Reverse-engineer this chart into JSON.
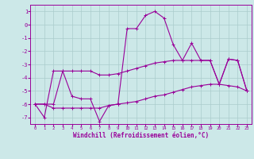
{
  "xlabel": "Windchill (Refroidissement éolien,°C)",
  "background_color": "#cce8e8",
  "line_color": "#990099",
  "grid_color": "#aacccc",
  "xlim": [
    -0.5,
    23.5
  ],
  "ylim": [
    -7.5,
    1.5
  ],
  "yticks": [
    1,
    0,
    -1,
    -2,
    -3,
    -4,
    -5,
    -6,
    -7
  ],
  "xticks": [
    0,
    1,
    2,
    3,
    4,
    5,
    6,
    7,
    8,
    9,
    10,
    11,
    12,
    13,
    14,
    15,
    16,
    17,
    18,
    19,
    20,
    21,
    22,
    23
  ],
  "hours": [
    0,
    1,
    2,
    3,
    4,
    5,
    6,
    7,
    8,
    9,
    10,
    11,
    12,
    13,
    14,
    15,
    16,
    17,
    18,
    19,
    20,
    21,
    22,
    23
  ],
  "temperature": [
    -6.0,
    -7.0,
    -3.5,
    -3.5,
    -5.4,
    -5.6,
    -5.6,
    -7.3,
    -6.1,
    -6.0,
    -0.3,
    -0.3,
    0.7,
    1.0,
    0.5,
    -1.5,
    -2.7,
    -1.4,
    -2.7,
    -2.7,
    -4.5,
    -2.6,
    -2.7,
    -5.0
  ],
  "windchill_upper": [
    -6.0,
    -6.0,
    -6.0,
    -3.5,
    -3.5,
    -3.5,
    -3.5,
    -3.8,
    -3.8,
    -3.7,
    -3.5,
    -3.3,
    -3.1,
    -2.9,
    -2.8,
    -2.7,
    -2.7,
    -2.7,
    -2.7,
    -2.7,
    -4.5,
    -2.6,
    -2.7,
    -5.0
  ],
  "windchill_lower": [
    -6.0,
    -6.0,
    -6.3,
    -6.3,
    -6.3,
    -6.3,
    -6.3,
    -6.3,
    -6.1,
    -6.0,
    -5.9,
    -5.8,
    -5.6,
    -5.4,
    -5.3,
    -5.1,
    -4.9,
    -4.7,
    -4.6,
    -4.5,
    -4.5,
    -4.6,
    -4.7,
    -5.0
  ]
}
